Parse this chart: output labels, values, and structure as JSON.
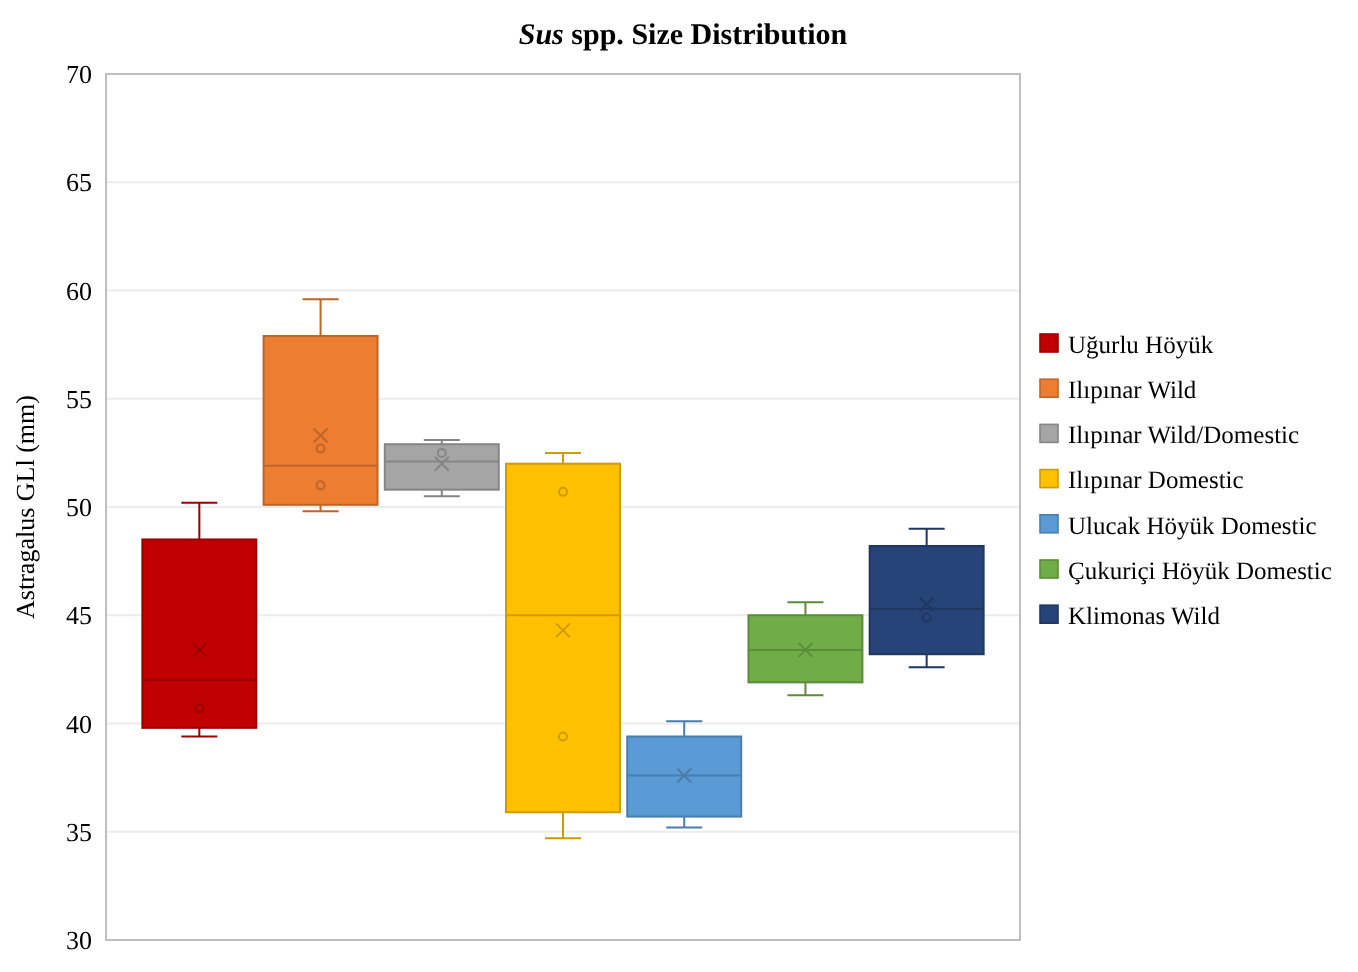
{
  "chart_data": {
    "type": "box",
    "title": "Sus spp. Size Distribution",
    "ylabel": "Astragalus GLl (mm)",
    "categories": [
      null
    ],
    "ylim": [
      30,
      70
    ],
    "yticks": [
      30,
      35,
      40,
      45,
      50,
      55,
      60,
      65,
      70
    ],
    "grid": "y",
    "legend": "right",
    "series": [
      {
        "name": "Uğurlu Höyük",
        "color": "#c00000",
        "boxes": [
          {
            "low": 39.4,
            "q1": 39.8,
            "median": 42.0,
            "q3": 48.5,
            "high": 50.2,
            "mean": 43.4,
            "outliers": [
              40.7
            ]
          }
        ]
      },
      {
        "name": "Ilıpınar Wild",
        "color": "#ed7d31",
        "boxes": [
          {
            "low": 49.8,
            "q1": 50.1,
            "median": 51.9,
            "q3": 57.9,
            "high": 59.6,
            "mean": 53.3,
            "outliers": [
              52.7,
              51.0
            ]
          }
        ]
      },
      {
        "name": "Ilıpınar Wild/Domestic",
        "color": "#a5a5a5",
        "boxes": [
          {
            "low": 50.5,
            "q1": 50.8,
            "median": 52.1,
            "q3": 52.9,
            "high": 53.1,
            "mean": 52.0,
            "outliers": [
              52.5
            ]
          }
        ]
      },
      {
        "name": "Ilıpınar Domestic",
        "color": "#ffc000",
        "boxes": [
          {
            "low": 34.7,
            "q1": 35.9,
            "median": 45.0,
            "q3": 52.0,
            "high": 52.5,
            "mean": 44.3,
            "outliers": [
              50.7,
              39.4
            ]
          }
        ]
      },
      {
        "name": "Ulucak Höyük Domestic",
        "color": "#5b9bd5",
        "boxes": [
          {
            "low": 35.2,
            "q1": 35.7,
            "median": 37.6,
            "q3": 39.4,
            "high": 40.1,
            "mean": 37.6
          }
        ]
      },
      {
        "name": "Çukuriçi Höyük Domestic",
        "color": "#70ad47",
        "boxes": [
          {
            "low": 41.3,
            "q1": 41.9,
            "median": 43.4,
            "q3": 45.0,
            "high": 45.6,
            "mean": 43.4
          }
        ]
      },
      {
        "name": "Klimonas Wild",
        "color": "#264478",
        "boxes": [
          {
            "low": 42.6,
            "q1": 43.2,
            "median": 45.3,
            "q3": 48.2,
            "high": 49.0,
            "mean": 45.5,
            "outliers": [
              44.9
            ]
          }
        ]
      }
    ]
  }
}
